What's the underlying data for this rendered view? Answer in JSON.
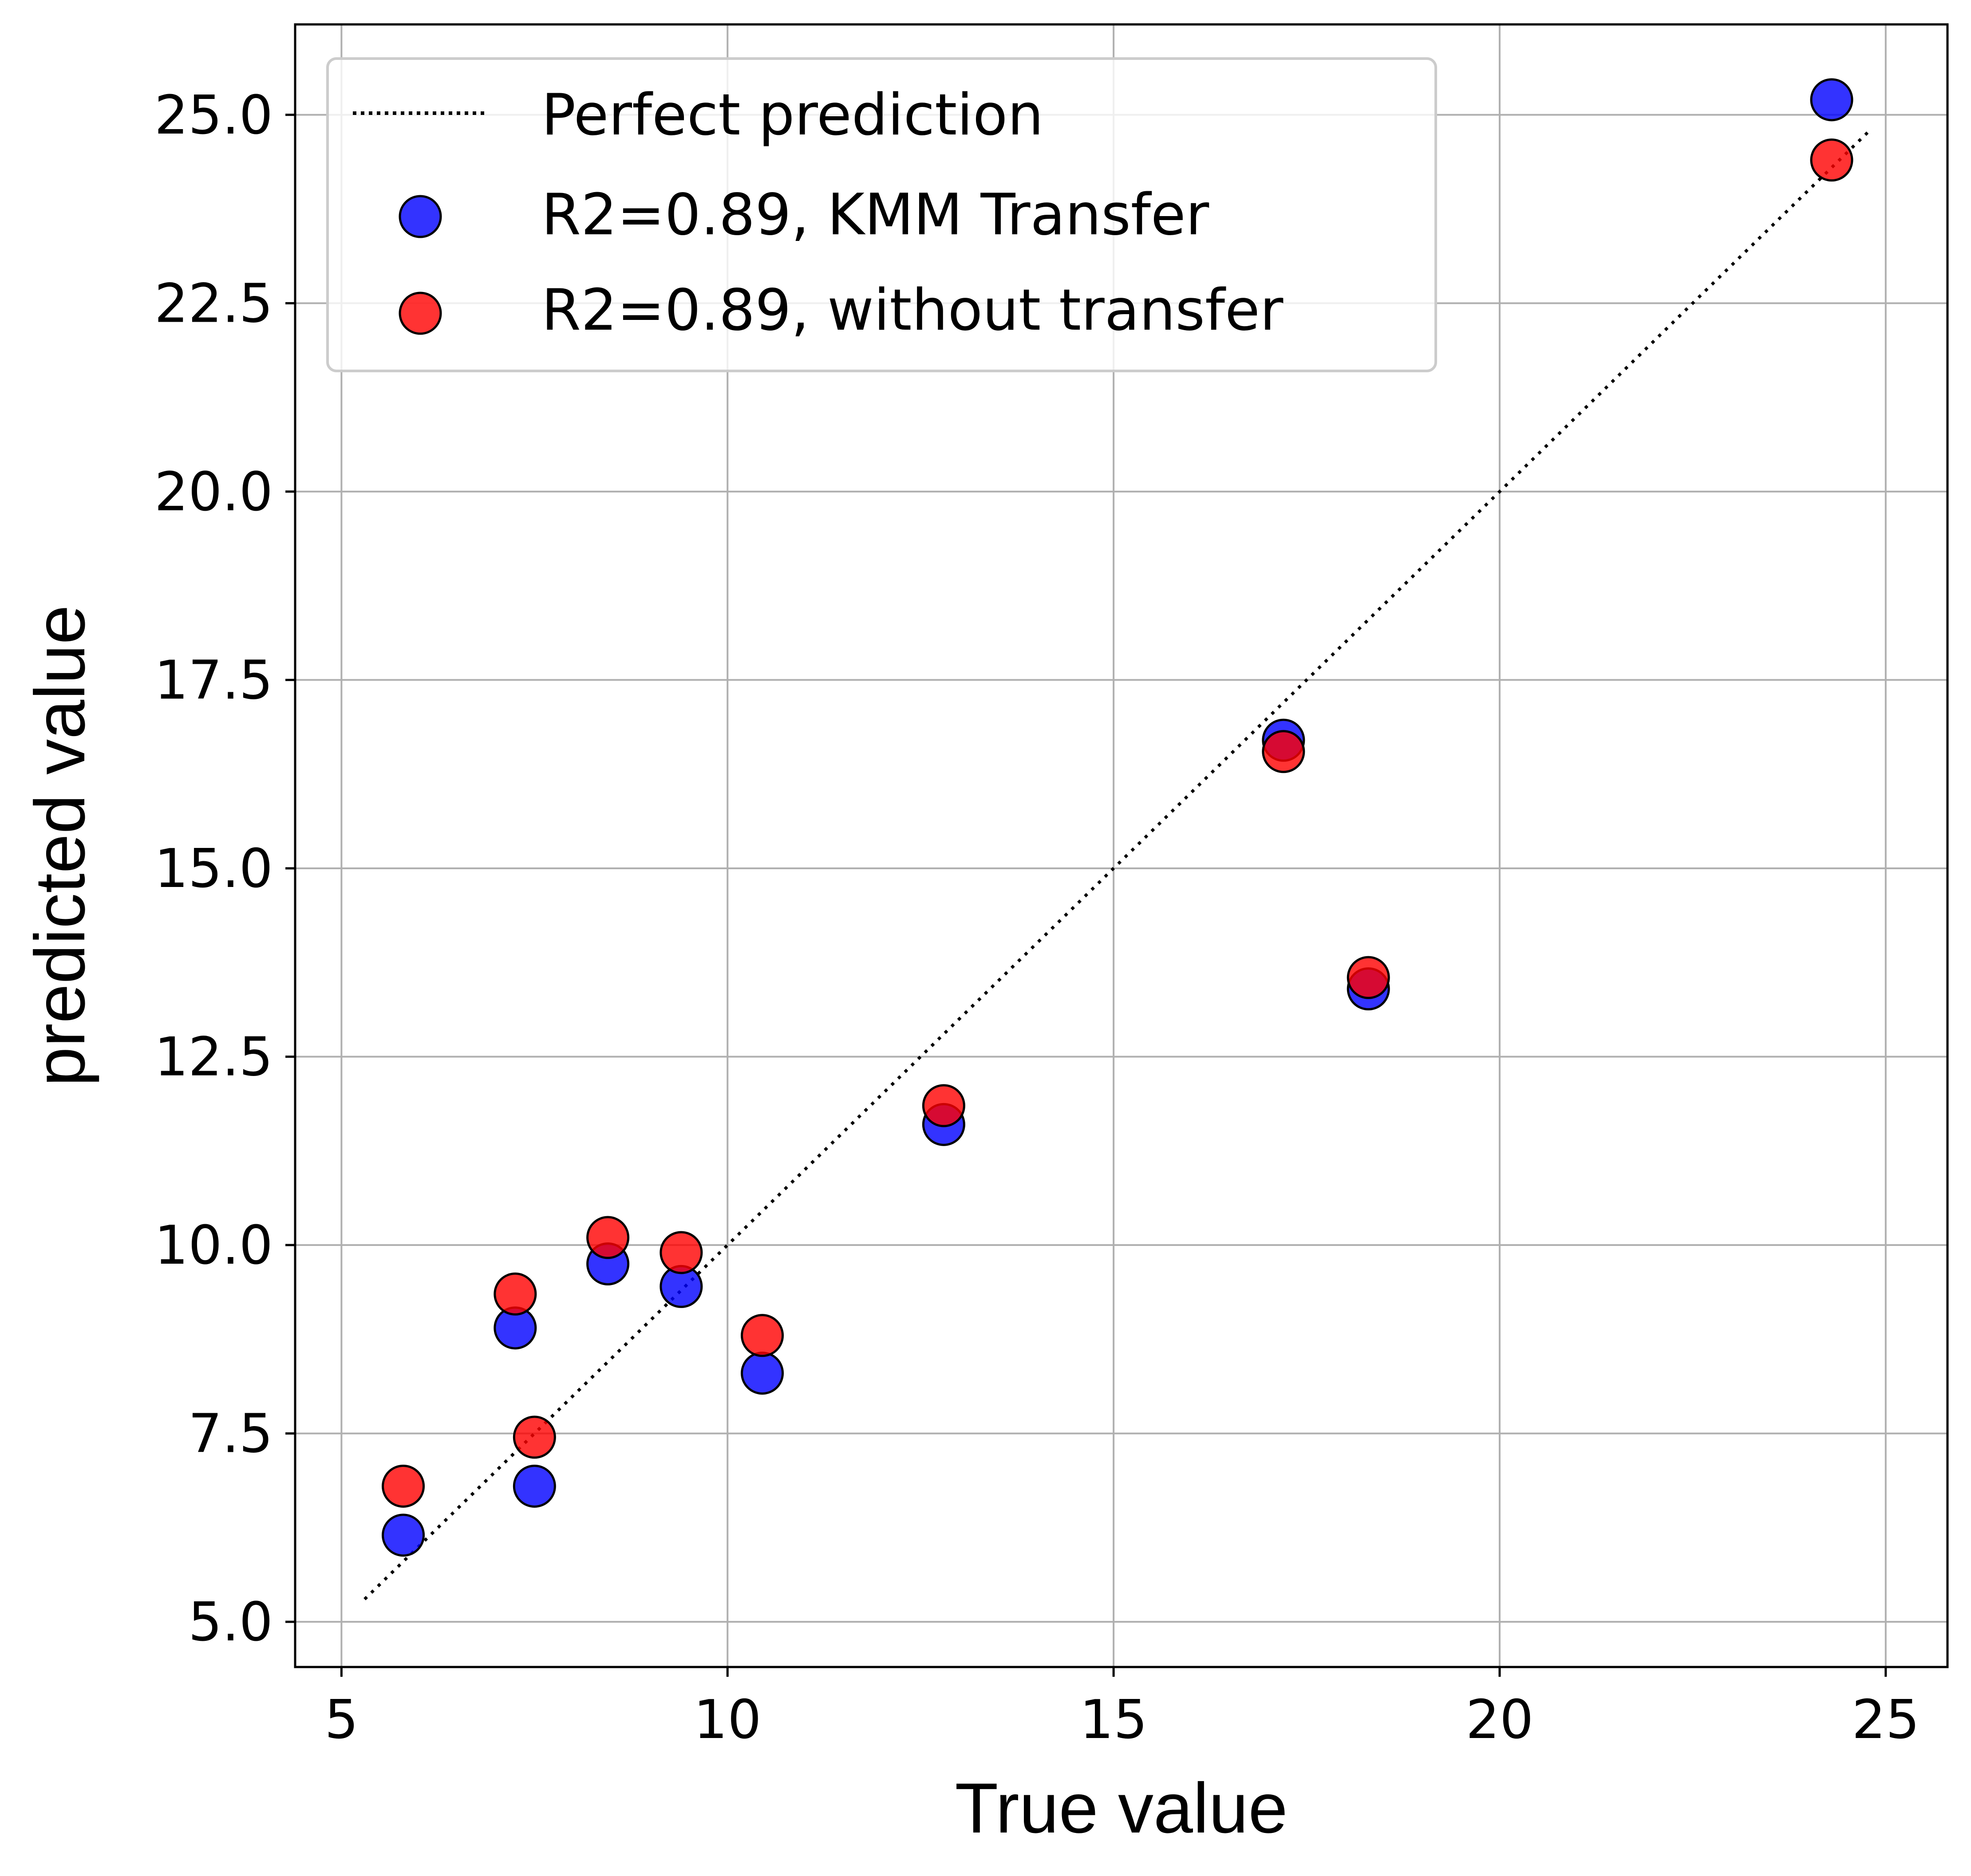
{
  "chart_data": {
    "type": "scatter",
    "xlabel": "True value",
    "ylabel": "predicted value",
    "xlim": [
      4.4,
      25.8
    ],
    "ylim": [
      4.4,
      26.2
    ],
    "x_ticks": [
      5,
      10,
      15,
      20,
      25
    ],
    "x_tick_labels": [
      "5",
      "10",
      "15",
      "20",
      "25"
    ],
    "y_ticks": [
      5,
      7.5,
      10,
      12.5,
      15,
      17.5,
      20,
      22.5,
      25
    ],
    "y_tick_labels": [
      "5.0",
      "7.5",
      "10.0",
      "12.5",
      "15.0",
      "17.5",
      "20.0",
      "22.5",
      "25.0"
    ],
    "grid": true,
    "legend_position": "top-left",
    "reference_line": {
      "label": "Perfect prediction",
      "style": "dotted",
      "color": "#000000",
      "x": [
        5.3,
        24.8
      ],
      "y": [
        5.3,
        24.8
      ]
    },
    "series": [
      {
        "name": "R2=0.89, KMM Transfer",
        "color": "#0000ff",
        "x": [
          5.8,
          7.25,
          7.5,
          8.45,
          9.4,
          10.45,
          12.8,
          17.2,
          18.3,
          24.3
        ],
        "y": [
          6.15,
          8.9,
          6.8,
          9.75,
          9.45,
          8.3,
          11.6,
          16.7,
          13.4,
          25.2
        ]
      },
      {
        "name": "R2=0.89, without transfer",
        "color": "#ff0000",
        "x": [
          5.8,
          7.25,
          7.5,
          8.45,
          9.4,
          10.45,
          12.8,
          17.2,
          18.3,
          24.3
        ],
        "y": [
          6.8,
          9.35,
          7.45,
          10.1,
          9.9,
          8.8,
          11.85,
          16.55,
          13.55,
          24.4
        ]
      }
    ]
  }
}
